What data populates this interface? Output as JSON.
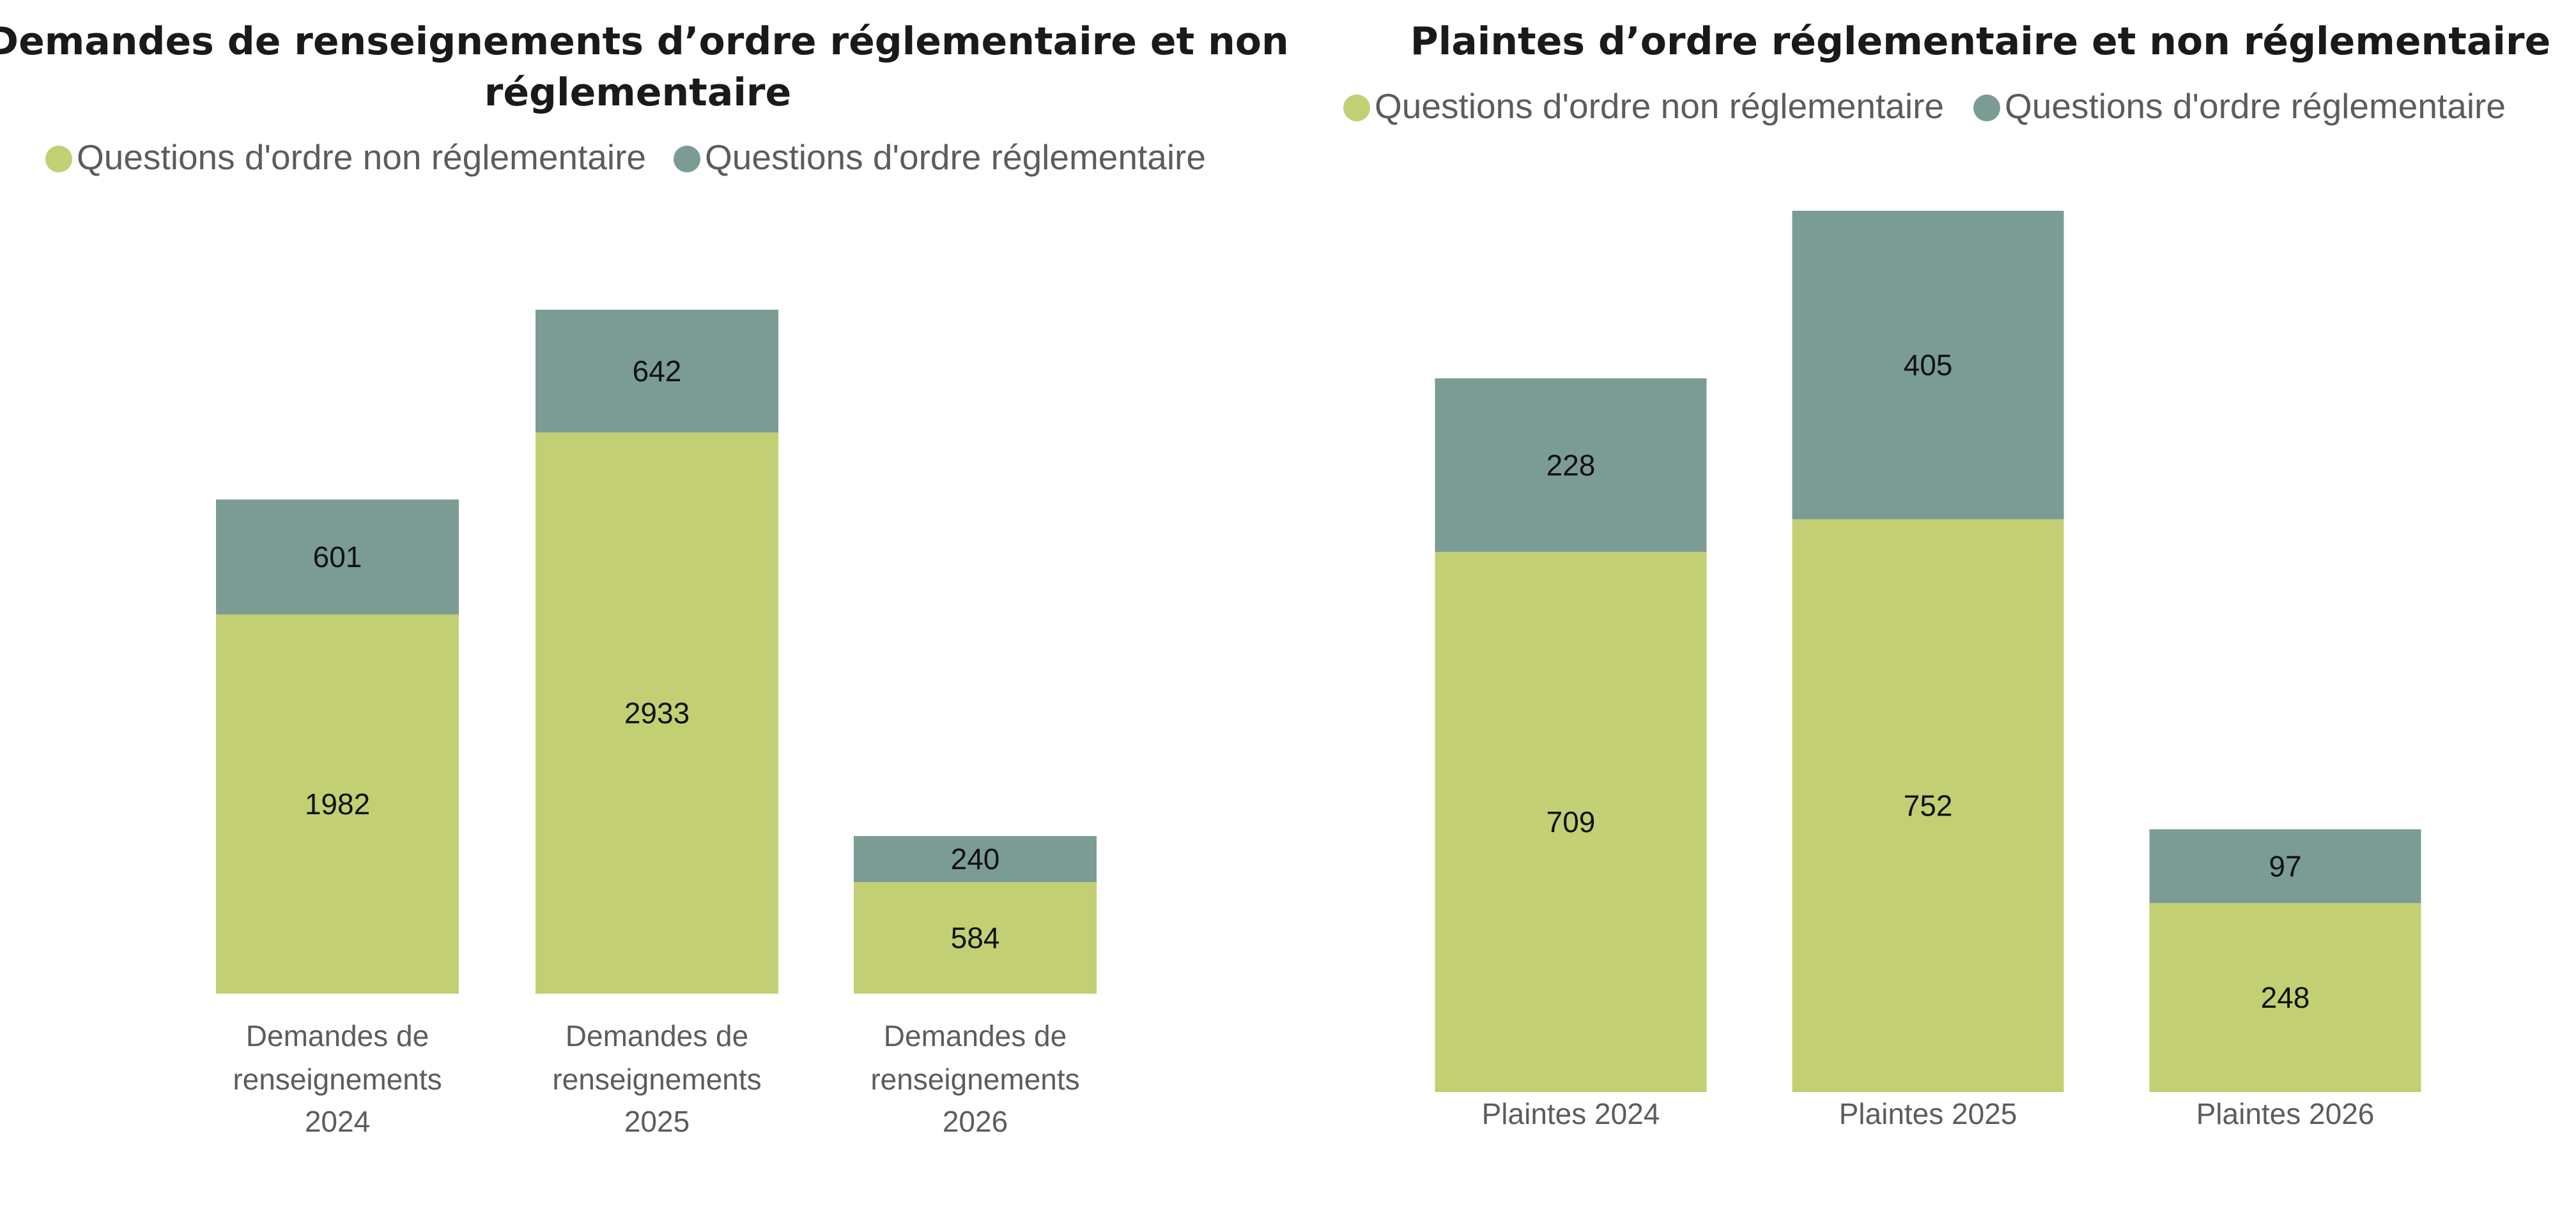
{
  "chart_data": [
    {
      "type": "bar",
      "stacked": true,
      "title": "Demandes de renseignements d’ordre réglementaire et non réglementaire",
      "title_lines": [
        "Demandes de renseignements d’ordre réglementaire et non",
        "réglementaire"
      ],
      "legend_position": "top-left",
      "categories": [
        "Demandes de renseignements 2024",
        "Demandes de renseignements 2025",
        "Demandes de renseignements 2026"
      ],
      "category_lines": [
        [
          "Demandes de",
          "renseignements",
          "2024"
        ],
        [
          "Demandes de",
          "renseignements",
          "2025"
        ],
        [
          "Demandes de",
          "renseignements",
          "2026"
        ]
      ],
      "series": [
        {
          "name": "Questions d'ordre non réglementaire",
          "color": "#c3cf73",
          "values": [
            1982,
            2933,
            584
          ]
        },
        {
          "name": "Questions d'ordre réglementaire",
          "color": "#7a9c94",
          "values": [
            601,
            642,
            240
          ]
        }
      ],
      "ylim": [
        0,
        3575
      ],
      "grid": false,
      "data_labels": true
    },
    {
      "type": "bar",
      "stacked": true,
      "title": "Plaintes d’ordre réglementaire et non réglementaire",
      "title_lines": [
        "Plaintes d’ordre réglementaire et non réglementaire"
      ],
      "legend_position": "top-center",
      "categories": [
        "Plaintes 2024",
        "Plaintes 2025",
        "Plaintes 2026"
      ],
      "category_lines": [
        [
          "Plaintes 2024"
        ],
        [
          "Plaintes 2025"
        ],
        [
          "Plaintes 2026"
        ]
      ],
      "series": [
        {
          "name": "Questions d'ordre non réglementaire",
          "color": "#c3cf73",
          "values": [
            709,
            752,
            248
          ]
        },
        {
          "name": "Questions d'ordre réglementaire",
          "color": "#7a9c94",
          "values": [
            228,
            405,
            97
          ]
        }
      ],
      "ylim": [
        0,
        1157
      ],
      "grid": false,
      "data_labels": true
    }
  ]
}
